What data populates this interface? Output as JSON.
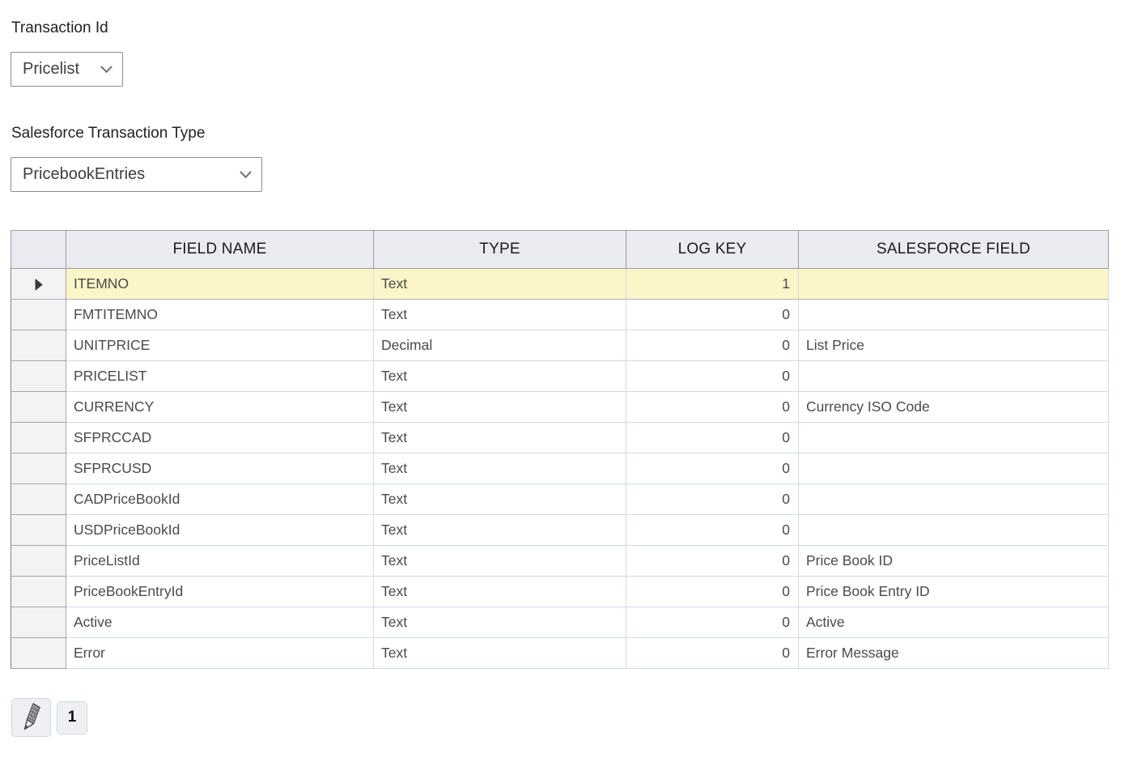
{
  "form": {
    "transaction_id": {
      "label": "Transaction Id",
      "value": "Pricelist"
    },
    "sf_transaction_type": {
      "label": "Salesforce Transaction Type",
      "value": "PricebookEntries"
    }
  },
  "table": {
    "columns": [
      "FIELD NAME",
      "TYPE",
      "LOG KEY",
      "SALESFORCE FIELD"
    ],
    "rows": [
      {
        "field_name": "ITEMNO",
        "type": "Text",
        "log_key": "1",
        "salesforce_field": "",
        "selected": true
      },
      {
        "field_name": "FMTITEMNO",
        "type": "Text",
        "log_key": "0",
        "salesforce_field": "",
        "selected": false
      },
      {
        "field_name": "UNITPRICE",
        "type": "Decimal",
        "log_key": "0",
        "salesforce_field": "List Price",
        "selected": false
      },
      {
        "field_name": "PRICELIST",
        "type": "Text",
        "log_key": "0",
        "salesforce_field": "",
        "selected": false
      },
      {
        "field_name": "CURRENCY",
        "type": "Text",
        "log_key": "0",
        "salesforce_field": "Currency ISO Code",
        "selected": false
      },
      {
        "field_name": "SFPRCCAD",
        "type": "Text",
        "log_key": "0",
        "salesforce_field": "",
        "selected": false
      },
      {
        "field_name": "SFPRCUSD",
        "type": "Text",
        "log_key": "0",
        "salesforce_field": "",
        "selected": false
      },
      {
        "field_name": "CADPriceBookId",
        "type": "Text",
        "log_key": "0",
        "salesforce_field": "",
        "selected": false
      },
      {
        "field_name": "USDPriceBookId",
        "type": "Text",
        "log_key": "0",
        "salesforce_field": "",
        "selected": false
      },
      {
        "field_name": "PriceListId",
        "type": "Text",
        "log_key": "0",
        "salesforce_field": "Price Book ID",
        "selected": false
      },
      {
        "field_name": "PriceBookEntryId",
        "type": "Text",
        "log_key": "0",
        "salesforce_field": "Price Book Entry ID",
        "selected": false
      },
      {
        "field_name": "Active",
        "type": "Text",
        "log_key": "0",
        "salesforce_field": "Active",
        "selected": false
      },
      {
        "field_name": "Error",
        "type": "Text",
        "log_key": "0",
        "salesforce_field": "Error Message",
        "selected": false
      }
    ]
  },
  "footer": {
    "edit_icon": "pencil-icon",
    "page_button_label": "1"
  },
  "colors": {
    "selected_row_bg": "#fbf5c8",
    "header_bg": "#eaebf1",
    "row_header_bg": "#f3f3f3",
    "grid_line": "#d0dbe7",
    "outer_border": "#76828f"
  }
}
